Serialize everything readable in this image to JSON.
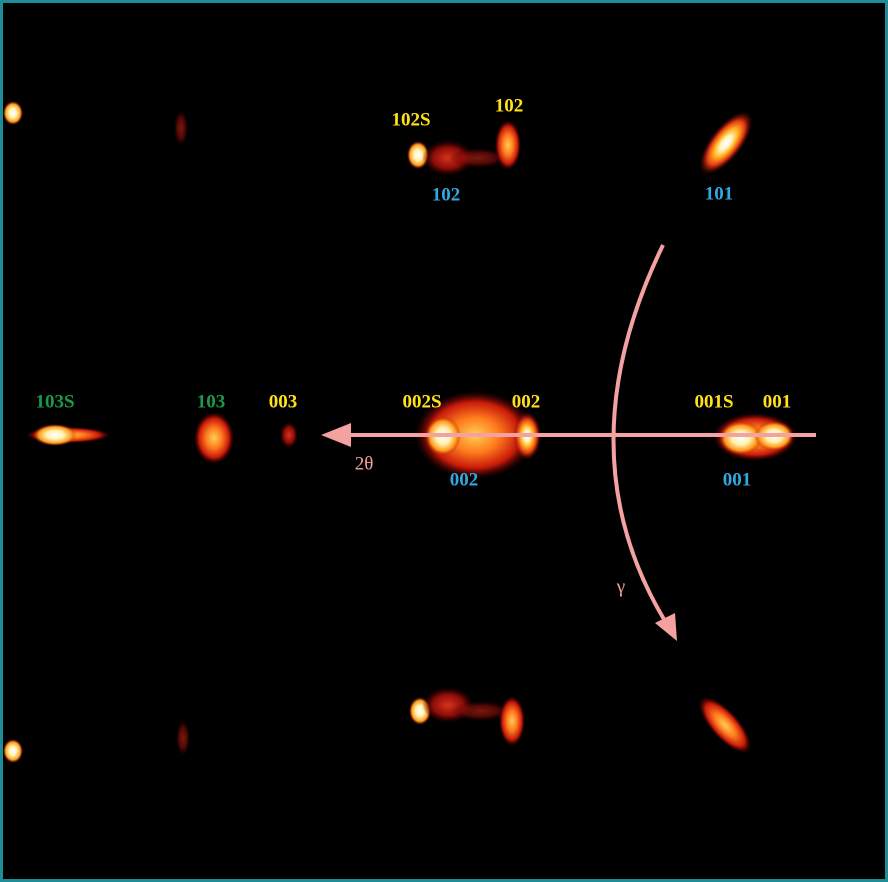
{
  "colors": {
    "film": "#ffe11a",
    "substrate": "#33a7e0",
    "secondary_phase": "#1a9a4a",
    "arrow": "#f4a1a1",
    "border": "#1d8d98",
    "background": "#000000"
  },
  "labels": {
    "l_102S": "102S",
    "l_102_yellow": "102",
    "l_102_blue": "102",
    "l_101_blue": "101",
    "l_103S": "103S",
    "l_103": "103",
    "l_003": "003",
    "l_002S": "002S",
    "l_002_yellow": "002",
    "l_002_blue": "002",
    "l_001S": "001S",
    "l_001_yellow": "001",
    "l_001_blue": "001"
  },
  "axes": {
    "two_theta": "2θ",
    "gamma": "γ"
  }
}
